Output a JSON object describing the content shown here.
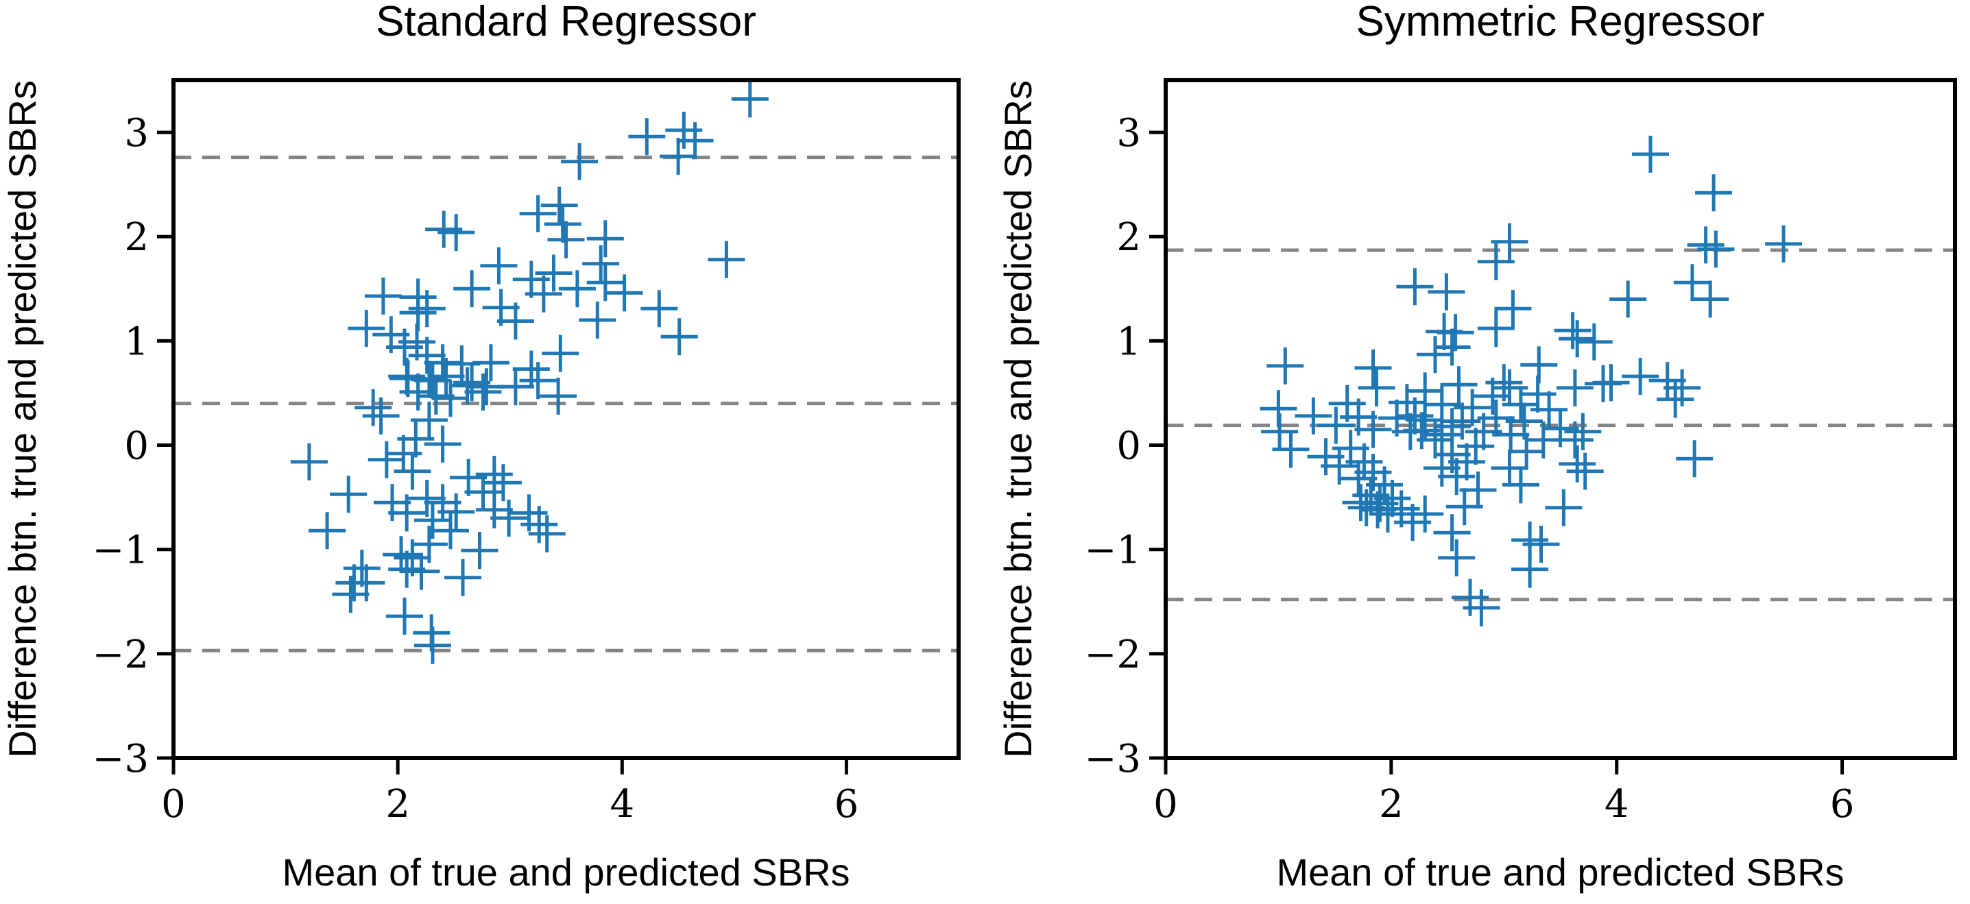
{
  "figure": {
    "background": "#ffffff",
    "marker_color": "#1f77b4",
    "dashed_line_color": "#848484",
    "axis_color": "#000000",
    "marker_glyph": "+"
  },
  "chart_data": [
    {
      "type": "scatter",
      "title": "Standard Regressor",
      "xlabel": "Mean of true and predicted SBRs",
      "ylabel": "Difference btn. true and predicted SBRs",
      "xlim": [
        0,
        7
      ],
      "ylim": [
        -3,
        3.5
      ],
      "xticks": [
        0,
        2,
        4,
        6
      ],
      "yticks": [
        -3,
        -2,
        -1,
        0,
        1,
        2,
        3
      ],
      "grid": false,
      "legend": "none",
      "dashed_lines": {
        "upper_loa": 2.76,
        "mean": 0.4,
        "lower_loa": -1.97
      },
      "points": [
        [
          5.14,
          3.32
        ],
        [
          4.22,
          2.96
        ],
        [
          4.55,
          3.02
        ],
        [
          4.65,
          2.92
        ],
        [
          4.5,
          2.77
        ],
        [
          3.62,
          2.72
        ],
        [
          3.44,
          2.3
        ],
        [
          3.25,
          2.22
        ],
        [
          3.47,
          2.12
        ],
        [
          2.41,
          2.07
        ],
        [
          2.52,
          2.04
        ],
        [
          3.85,
          1.98
        ],
        [
          3.5,
          1.97
        ],
        [
          4.93,
          1.78
        ],
        [
          3.81,
          1.74
        ],
        [
          2.9,
          1.72
        ],
        [
          3.39,
          1.65
        ],
        [
          3.19,
          1.59
        ],
        [
          3.6,
          1.5
        ],
        [
          3.85,
          1.56
        ],
        [
          4.02,
          1.46
        ],
        [
          2.66,
          1.5
        ],
        [
          1.87,
          1.43
        ],
        [
          2.18,
          1.42
        ],
        [
          3.3,
          1.45
        ],
        [
          2.18,
          1.27
        ],
        [
          2.26,
          1.31
        ],
        [
          2.92,
          1.32
        ],
        [
          3.05,
          1.19
        ],
        [
          3.78,
          1.2
        ],
        [
          4.33,
          1.31
        ],
        [
          4.51,
          1.04
        ],
        [
          1.72,
          1.12
        ],
        [
          1.94,
          1.06
        ],
        [
          2.17,
          0.99
        ],
        [
          2.06,
          0.94
        ],
        [
          2.26,
          0.86
        ],
        [
          3.45,
          0.88
        ],
        [
          2.4,
          0.79
        ],
        [
          2.57,
          0.78
        ],
        [
          2.83,
          0.79
        ],
        [
          3.19,
          0.73
        ],
        [
          2.09,
          0.64
        ],
        [
          2.31,
          0.62
        ],
        [
          2.62,
          0.57
        ],
        [
          2.79,
          0.56
        ],
        [
          3.05,
          0.56
        ],
        [
          3.25,
          0.62
        ],
        [
          2.08,
          0.66
        ],
        [
          2.18,
          0.51
        ],
        [
          2.28,
          0.63
        ],
        [
          2.34,
          0.47
        ],
        [
          2.43,
          0.66
        ],
        [
          2.47,
          0.45
        ],
        [
          2.66,
          0.6
        ],
        [
          2.76,
          0.51
        ],
        [
          1.78,
          0.36
        ],
        [
          1.85,
          0.28
        ],
        [
          2.28,
          0.24
        ],
        [
          3.43,
          0.47
        ],
        [
          2.16,
          0.06
        ],
        [
          2.4,
          0.01
        ],
        [
          2.05,
          -0.08
        ],
        [
          1.9,
          -0.14
        ],
        [
          2.13,
          -0.25
        ],
        [
          1.21,
          -0.16
        ],
        [
          2.63,
          -0.31
        ],
        [
          2.86,
          -0.28
        ],
        [
          2.94,
          -0.36
        ],
        [
          2.76,
          -0.45
        ],
        [
          1.56,
          -0.47
        ],
        [
          1.95,
          -0.55
        ],
        [
          2.26,
          -0.51
        ],
        [
          2.4,
          -0.55
        ],
        [
          2.52,
          -0.64
        ],
        [
          2.08,
          -0.65
        ],
        [
          2.31,
          -0.72
        ],
        [
          2.47,
          -0.82
        ],
        [
          2.86,
          -0.62
        ],
        [
          2.99,
          -0.7
        ],
        [
          3.17,
          -0.65
        ],
        [
          3.26,
          -0.76
        ],
        [
          3.33,
          -0.85
        ],
        [
          1.37,
          -0.82
        ],
        [
          2.28,
          -0.95
        ],
        [
          2.73,
          -1.01
        ],
        [
          2.03,
          -1.05
        ],
        [
          2.13,
          -1.08
        ],
        [
          2.08,
          -1.19
        ],
        [
          2.21,
          -1.21
        ],
        [
          2.58,
          -1.27
        ],
        [
          1.68,
          -1.18
        ],
        [
          1.61,
          -1.32
        ],
        [
          1.72,
          -1.32
        ],
        [
          1.58,
          -1.43
        ],
        [
          2.06,
          -1.64
        ],
        [
          2.3,
          -1.8
        ],
        [
          2.31,
          -1.92
        ]
      ]
    },
    {
      "type": "scatter",
      "title": "Symmetric Regressor",
      "xlabel": "Mean of true and predicted SBRs",
      "ylabel": "Difference btn. true and predicted SBRs",
      "xlim": [
        0,
        7
      ],
      "ylim": [
        -3,
        3.5
      ],
      "xticks": [
        0,
        2,
        4,
        6
      ],
      "yticks": [
        -3,
        -2,
        -1,
        0,
        1,
        2,
        3
      ],
      "grid": false,
      "legend": "none",
      "dashed_lines": {
        "upper_loa": 1.87,
        "mean": 0.19,
        "lower_loa": -1.48
      },
      "points": [
        [
          4.3,
          2.79
        ],
        [
          4.86,
          2.42
        ],
        [
          5.48,
          1.93
        ],
        [
          4.79,
          1.92
        ],
        [
          4.88,
          1.88
        ],
        [
          3.05,
          1.95
        ],
        [
          2.93,
          1.76
        ],
        [
          2.21,
          1.52
        ],
        [
          2.49,
          1.47
        ],
        [
          4.67,
          1.56
        ],
        [
          4.1,
          1.4
        ],
        [
          4.83,
          1.4
        ],
        [
          3.08,
          1.31
        ],
        [
          2.93,
          1.12
        ],
        [
          2.47,
          1.09
        ],
        [
          2.57,
          1.08
        ],
        [
          2.54,
          0.94
        ],
        [
          2.39,
          0.87
        ],
        [
          3.61,
          1.1
        ],
        [
          3.65,
          1.02
        ],
        [
          3.8,
          0.99
        ],
        [
          3.31,
          0.77
        ],
        [
          1.84,
          0.74
        ],
        [
          1.06,
          0.76
        ],
        [
          4.45,
          0.62
        ],
        [
          4.58,
          0.55
        ],
        [
          4.52,
          0.44
        ],
        [
          3.95,
          0.6
        ],
        [
          4.21,
          0.66
        ],
        [
          1.87,
          0.55
        ],
        [
          2.6,
          0.58
        ],
        [
          3.0,
          0.6
        ],
        [
          3.63,
          0.55
        ],
        [
          3.88,
          0.59
        ],
        [
          1.0,
          0.35
        ],
        [
          1.31,
          0.28
        ],
        [
          1.61,
          0.4
        ],
        [
          2.14,
          0.41
        ],
        [
          2.3,
          0.52
        ],
        [
          2.45,
          0.39
        ],
        [
          2.72,
          0.36
        ],
        [
          2.9,
          0.47
        ],
        [
          3.05,
          0.55
        ],
        [
          3.15,
          0.39
        ],
        [
          3.3,
          0.49
        ],
        [
          3.4,
          0.34
        ],
        [
          1.01,
          0.13
        ],
        [
          1.51,
          0.19
        ],
        [
          1.71,
          0.27
        ],
        [
          1.84,
          0.15
        ],
        [
          2.05,
          0.26
        ],
        [
          2.17,
          0.13
        ],
        [
          2.3,
          0.24
        ],
        [
          2.45,
          0.1
        ],
        [
          2.54,
          0.18
        ],
        [
          2.63,
          0.23
        ],
        [
          2.82,
          0.13
        ],
        [
          2.93,
          0.26
        ],
        [
          3.06,
          0.1
        ],
        [
          3.18,
          0.23
        ],
        [
          3.5,
          0.16
        ],
        [
          3.7,
          0.13
        ],
        [
          2.21,
          0.28
        ],
        [
          2.27,
          0.14
        ],
        [
          2.39,
          0.05
        ],
        [
          2.75,
          -0.01
        ],
        [
          3.35,
          0.05
        ],
        [
          3.63,
          0.05
        ],
        [
          1.11,
          -0.04
        ],
        [
          1.42,
          -0.11
        ],
        [
          1.54,
          -0.2
        ],
        [
          1.64,
          -0.03
        ],
        [
          1.76,
          -0.16
        ],
        [
          1.71,
          -0.32
        ],
        [
          1.84,
          -0.26
        ],
        [
          1.94,
          -0.38
        ],
        [
          2.54,
          -0.09
        ],
        [
          2.45,
          -0.22
        ],
        [
          2.58,
          -0.3
        ],
        [
          2.67,
          -0.16
        ],
        [
          3.2,
          -0.06
        ],
        [
          3.05,
          -0.22
        ],
        [
          3.15,
          -0.38
        ],
        [
          3.65,
          -0.18
        ],
        [
          3.72,
          -0.25
        ],
        [
          4.69,
          -0.13
        ],
        [
          1.82,
          -0.48
        ],
        [
          1.73,
          -0.55
        ],
        [
          1.9,
          -0.56
        ],
        [
          2.01,
          -0.51
        ],
        [
          2.09,
          -0.61
        ],
        [
          1.78,
          -0.6
        ],
        [
          1.88,
          -0.62
        ],
        [
          1.97,
          -0.66
        ],
        [
          2.19,
          -0.74
        ],
        [
          2.3,
          -0.66
        ],
        [
          2.65,
          -0.59
        ],
        [
          2.77,
          -0.43
        ],
        [
          3.53,
          -0.6
        ],
        [
          2.54,
          -0.84
        ],
        [
          2.58,
          -1.08
        ],
        [
          3.23,
          -0.91
        ],
        [
          3.33,
          -0.95
        ],
        [
          3.23,
          -1.19
        ],
        [
          2.7,
          -1.46
        ],
        [
          2.8,
          -1.56
        ]
      ]
    }
  ]
}
